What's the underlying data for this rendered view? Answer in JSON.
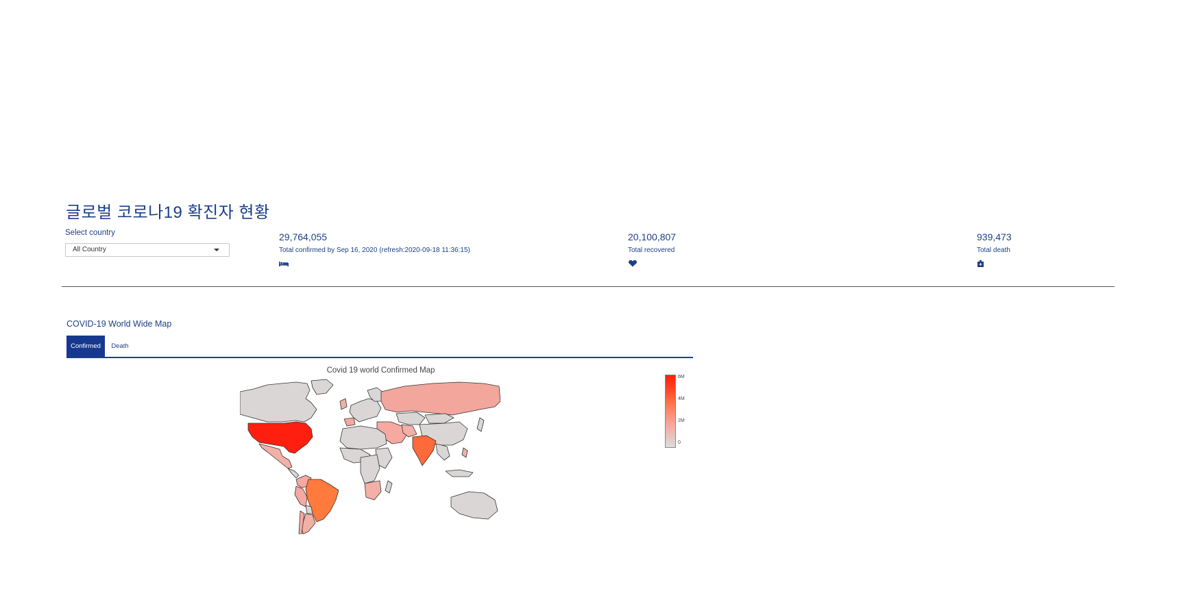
{
  "page": {
    "title": "글로벌 코로나19 확진자 현황"
  },
  "filter": {
    "label": "Select country",
    "selected": "All Country"
  },
  "stats": [
    {
      "value": "29,764,055",
      "label": "Total confirmed by Sep 16, 2020 (refresh:2020-09-18 11:36:15)",
      "icon": "bed-icon"
    },
    {
      "value": "20,100,807",
      "label": "Total recovered",
      "icon": "heart-icon"
    },
    {
      "value": "939,473",
      "label": "Total death",
      "icon": "hospital-icon"
    }
  ],
  "section": {
    "title": "COVID-19 World Wide Map",
    "tabs": [
      "Confirmed",
      "Death"
    ],
    "active_tab": "Confirmed"
  },
  "map": {
    "title": "Covid 19 world Confirmed Map",
    "colorbar_ticks": [
      "6M",
      "4M",
      "2M",
      "0"
    ],
    "colorscale": [
      "#dcdcdc",
      "#f5a9a0",
      "#ff7650",
      "#ff1f0e"
    ],
    "highlighted_regions": [
      {
        "region": "United States",
        "level": "high",
        "color": "#ff1f0e"
      },
      {
        "region": "Brazil",
        "level": "mid-high",
        "color": "#ff7a3c"
      },
      {
        "region": "India",
        "level": "mid-high",
        "color": "#ff6a3a"
      },
      {
        "region": "Russia",
        "level": "low-mid",
        "color": "#f2a69c"
      }
    ]
  }
}
